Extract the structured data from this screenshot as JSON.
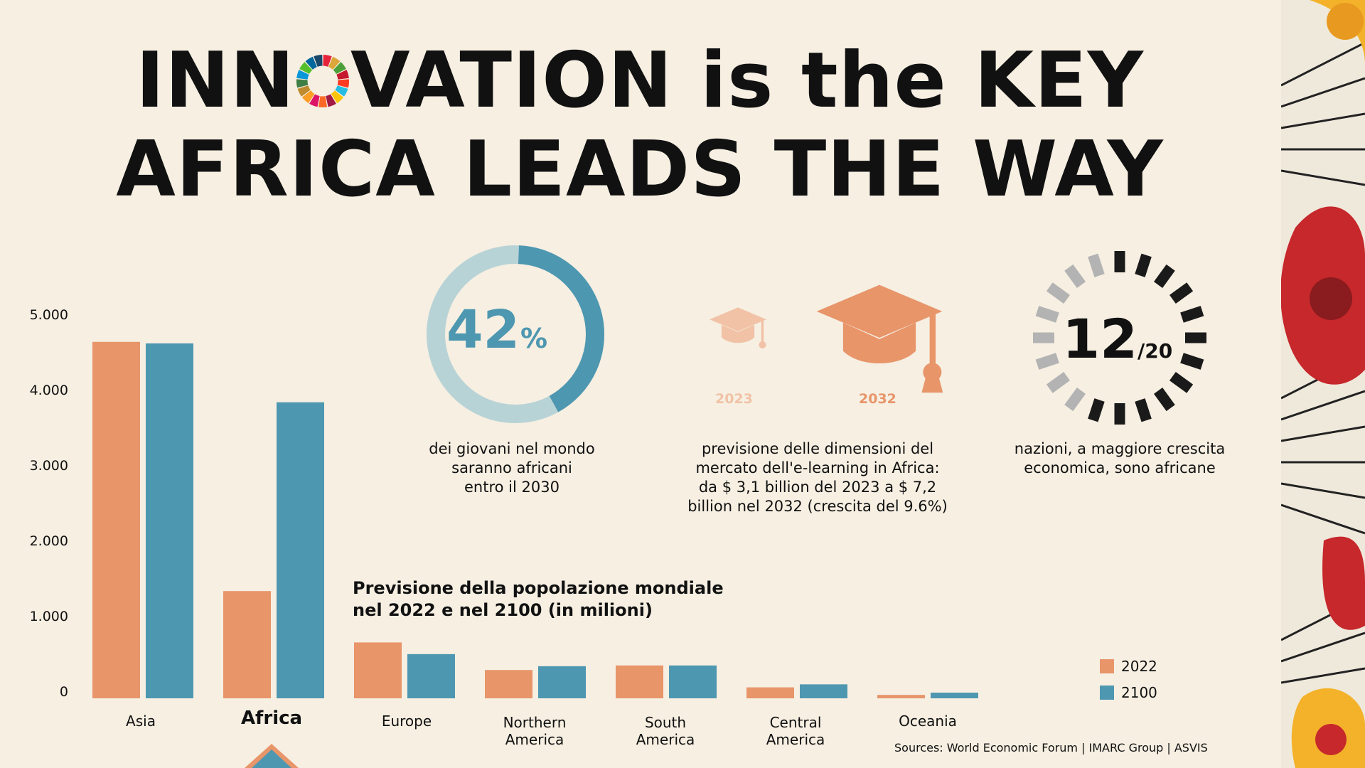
{
  "header": {
    "line1_before": "INN",
    "line1_after": "VATION is the KEY",
    "line2": "AFRICA LEADS THE WAY"
  },
  "colors": {
    "y2022": "#e8956a",
    "y2100": "#4e97b0",
    "ring_light": "#b8d3d6",
    "dark": "#1a1a1a",
    "grey": "#b3b3b3"
  },
  "icons": [
    "sdg-wheel-icon",
    "graduation-cap-icon",
    "countdown-ring-icon"
  ],
  "stats": {
    "youth": {
      "value": "42",
      "unit": "%",
      "fraction": 0.42,
      "caption": [
        "dei giovani nel mondo",
        "saranno africani",
        "entro il 2030"
      ]
    },
    "elearning": {
      "year_a": "2023",
      "year_b": "2032",
      "caption": [
        "previsione delle dimensioni del",
        "mercato dell'e-learning in Africa:",
        "da $ 3,1 billion del 2023 a $ 7,2",
        "billion nel 2032 (crescita del 9.6%)"
      ]
    },
    "nations": {
      "numerator": "12",
      "denominator": "/20",
      "count": 12,
      "total": 20,
      "caption": [
        "nazioni, a maggiore crescita",
        "economica, sono africane"
      ]
    }
  },
  "chart_data": {
    "type": "bar",
    "title": [
      "Previsione della popolazione mondiale",
      "nel 2022 e nel 2100 (in milioni)"
    ],
    "categories": [
      [
        "Asia"
      ],
      [
        "Africa"
      ],
      [
        "Europe"
      ],
      [
        "Northern",
        "America"
      ],
      [
        "South",
        "America"
      ],
      [
        "Central",
        "America"
      ],
      [
        "Oceania"
      ]
    ],
    "highlight_category": 1,
    "series": [
      {
        "name": "2022",
        "values": [
          4720,
          1420,
          740,
          375,
          435,
          145,
          45
        ]
      },
      {
        "name": "2100",
        "values": [
          4700,
          3920,
          585,
          425,
          435,
          185,
          75
        ]
      }
    ],
    "yticks": [
      "0",
      "1.000",
      "2.000",
      "3.000",
      "4.000",
      "5.000"
    ],
    "ylim": [
      0,
      5000
    ],
    "legend": "bottom-right"
  },
  "footer": {
    "sources": "Sources: World Economic Forum | IMARC Group | ASVIS"
  }
}
